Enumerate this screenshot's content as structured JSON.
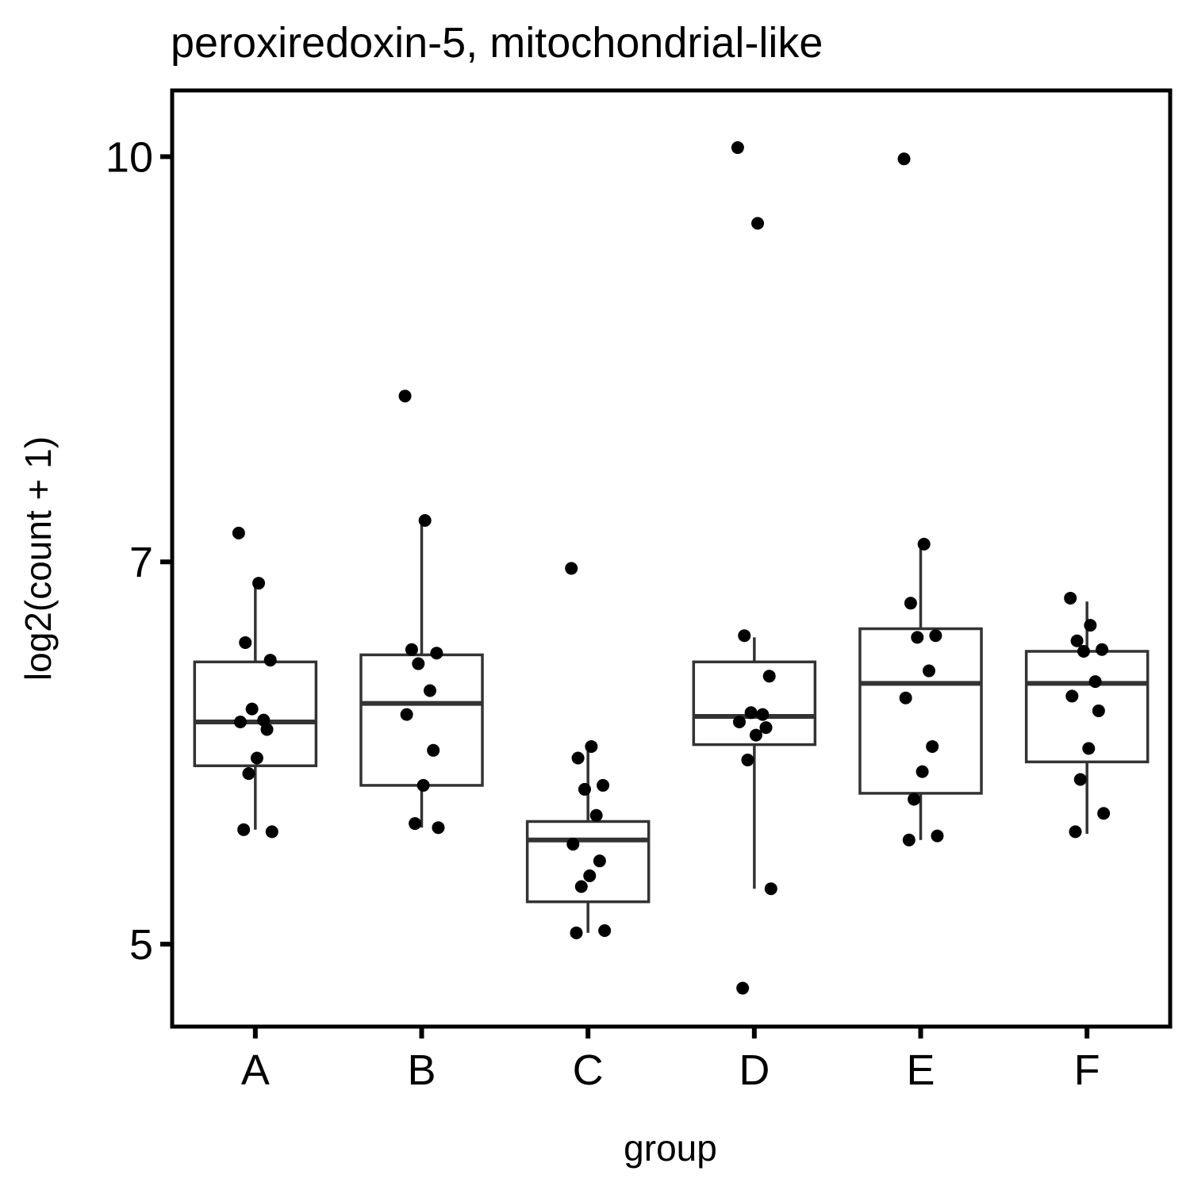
{
  "chart_data": {
    "type": "box",
    "title": "peroxiredoxin-5, mitochondrial-like",
    "xlabel": "group",
    "ylabel": "log2(count + 1)",
    "log_scale_y": true,
    "ylim": [
      4.65,
      10.6
    ],
    "yticks": [
      5,
      7,
      10
    ],
    "ytick_labels": [
      "5",
      "7",
      "10"
    ],
    "categories": [
      "A",
      "B",
      "C",
      "D",
      "E",
      "F"
    ],
    "boxes": [
      {
        "group": "A",
        "whisker_low": 5.53,
        "q1": 5.85,
        "median": 6.08,
        "q3": 6.41,
        "whisker_high": 6.87
      },
      {
        "group": "B",
        "whisker_low": 5.54,
        "q1": 5.75,
        "median": 6.18,
        "q3": 6.45,
        "whisker_high": 7.26
      },
      {
        "group": "C",
        "whisker_low": 5.05,
        "q1": 5.19,
        "median": 5.48,
        "q3": 5.57,
        "whisker_high": 5.95
      },
      {
        "group": "D",
        "whisker_low": 5.25,
        "q1": 5.96,
        "median": 6.11,
        "q3": 6.41,
        "whisker_high": 6.55
      },
      {
        "group": "E",
        "whisker_low": 5.48,
        "q1": 5.71,
        "median": 6.29,
        "q3": 6.6,
        "whisker_high": 7.11
      },
      {
        "group": "F",
        "whisker_low": 5.51,
        "q1": 5.87,
        "median": 6.29,
        "q3": 6.47,
        "whisker_high": 6.76
      }
    ],
    "points": [
      {
        "group": "A",
        "values": [
          7.18,
          6.87,
          6.52,
          6.42,
          6.15,
          6.09,
          6.08,
          6.04,
          5.89,
          5.81,
          5.52,
          5.53
        ]
      },
      {
        "group": "B",
        "values": [
          8.1,
          7.26,
          6.48,
          6.46,
          6.4,
          6.25,
          6.12,
          5.93,
          5.75,
          5.56,
          5.54
        ]
      },
      {
        "group": "C",
        "values": [
          6.96,
          5.95,
          5.89,
          5.75,
          5.73,
          5.6,
          5.46,
          5.38,
          5.31,
          5.26,
          5.06,
          5.05
        ]
      },
      {
        "group": "D",
        "values": [
          10.08,
          9.43,
          6.56,
          6.33,
          6.13,
          6.12,
          6.08,
          6.05,
          6.01,
          5.88,
          5.25,
          4.81
        ]
      },
      {
        "group": "E",
        "values": [
          9.98,
          7.11,
          6.75,
          6.56,
          6.55,
          6.36,
          6.21,
          5.95,
          5.82,
          5.68,
          5.5,
          5.48
        ]
      },
      {
        "group": "F",
        "values": [
          6.78,
          6.62,
          6.53,
          6.48,
          6.47,
          6.3,
          6.22,
          6.14,
          5.94,
          5.78,
          5.61,
          5.52
        ]
      }
    ],
    "grid": false,
    "legend": "none",
    "colors": {
      "box_line": "#333333",
      "point": "#000000",
      "axis": "#000000",
      "background": "#ffffff"
    }
  }
}
